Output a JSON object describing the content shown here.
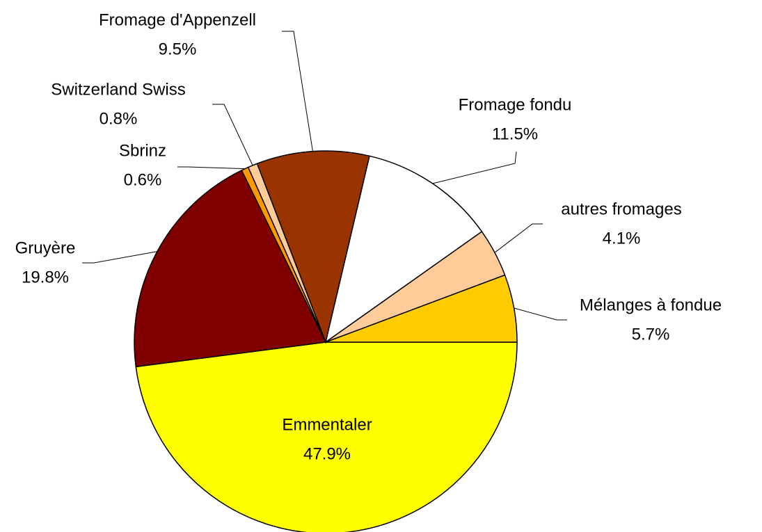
{
  "chart_data": {
    "type": "pie",
    "categories": [
      "Emmentaler",
      "Gruyère",
      "Sbrinz",
      "Switzerland Swiss",
      "Fromage d'Appenzell",
      "Fromage fondu",
      "autres fromages",
      "Mélanges à fondue"
    ],
    "values": [
      47.9,
      19.8,
      0.6,
      0.8,
      9.5,
      11.5,
      4.1,
      5.7
    ],
    "value_labels": [
      "47.9%",
      "19.8%",
      "0.6%",
      "0.8%",
      "9.5%",
      "11.5%",
      "4.1%",
      "5.7%"
    ],
    "colors": [
      "#ffff00",
      "#800000",
      "#ff9900",
      "#ffcc99",
      "#993300",
      "#ffffff",
      "#ffcc99",
      "#ffcc00"
    ]
  }
}
